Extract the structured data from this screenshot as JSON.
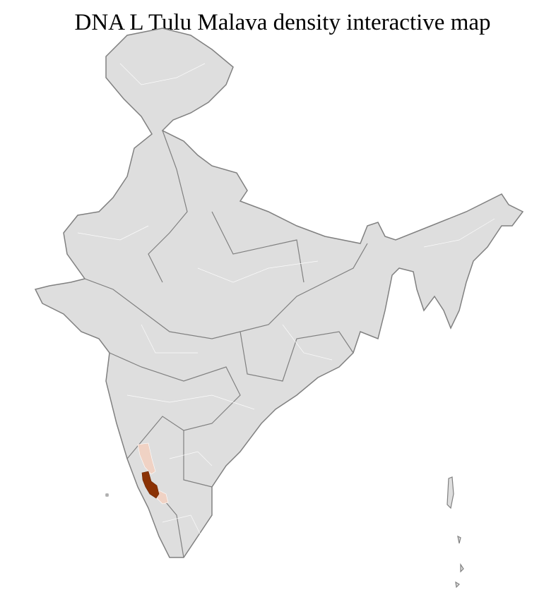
{
  "title": "DNA L Tulu Malava density interactive map",
  "map": {
    "region": "India districts",
    "base_fill": "#dedede",
    "district_border": "#ffffff",
    "state_border": "#808080",
    "highlight_high": "#8b3205",
    "highlight_low": "#f0d2c4",
    "highlighted": [
      {
        "area": "coastal Karnataka (Dakshina Kannada / Udupi)",
        "level": "high"
      },
      {
        "area": "adjacent coastal districts (Uttara Kannada / Kasaragod / Kodagu)",
        "level": "low"
      }
    ]
  }
}
